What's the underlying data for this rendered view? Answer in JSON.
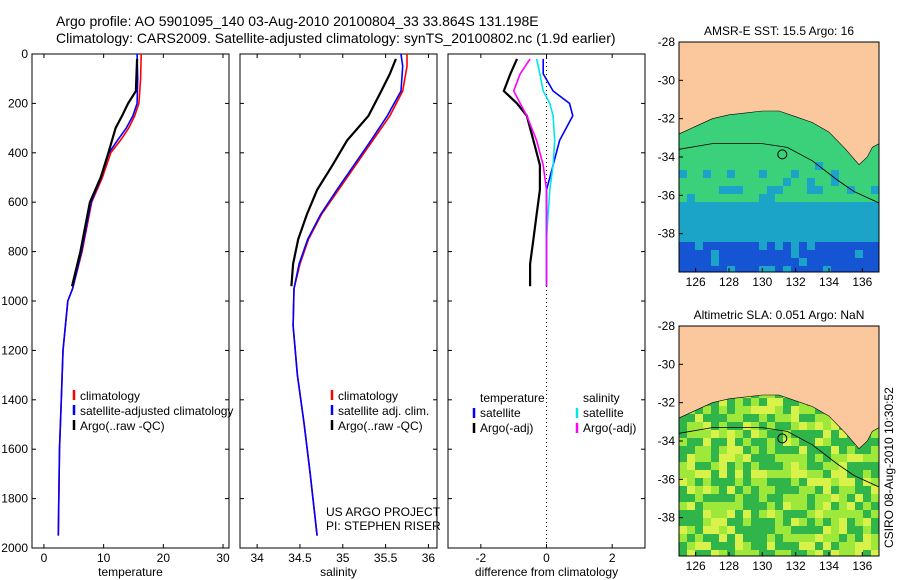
{
  "header": {
    "line1": "Argo profile: AO 5901095_140 03-Aug-2010 20100804_33 33.864S 131.198E",
    "line2": "Climatology: CARS2009. Satellite-adjusted climatology: synTS_20100802.nc (1.9d earlier)"
  },
  "footer": {
    "credit": "CSIRO 08-Aug-2010 10:30:52"
  },
  "chart_data": [
    {
      "type": "line",
      "xlabel": "temperature",
      "ylabel": "",
      "xlim": [
        -2,
        31
      ],
      "ylim": [
        2000,
        0
      ],
      "xticks": [
        0,
        10,
        20,
        30
      ],
      "yticks": [
        0,
        200,
        400,
        600,
        800,
        1000,
        1200,
        1400,
        1600,
        1800,
        2000
      ],
      "legend": [
        "climatology",
        "satellite-adjusted climatology",
        "Argo(..raw -QC)"
      ],
      "series": [
        {
          "name": "climatology",
          "color": "#ff0000",
          "x": [
            16.3,
            16.2,
            15.9,
            15.2,
            14.2,
            12.8,
            11.2,
            9.8,
            8.0,
            6.4,
            4.8,
            4.0,
            3.2,
            2.9,
            2.6,
            2.4
          ],
          "y": [
            0,
            100,
            200,
            250,
            300,
            350,
            400,
            500,
            600,
            800,
            950,
            1000,
            1200,
            1400,
            1600,
            1950
          ]
        },
        {
          "name": "satellite-adjusted climatology",
          "color": "#0000ff",
          "x": [
            15.6,
            15.7,
            15.6,
            14.9,
            13.8,
            12.3,
            10.9,
            9.6,
            7.9,
            6.3,
            4.8,
            4.0,
            3.2,
            2.9,
            2.6,
            2.4
          ],
          "y": [
            0,
            100,
            200,
            250,
            300,
            350,
            400,
            500,
            600,
            800,
            950,
            1000,
            1200,
            1400,
            1600,
            1950
          ]
        },
        {
          "name": "Argo(..raw -QC)",
          "color": "#000000",
          "x": [
            15.6,
            15.5,
            15.4,
            14.1,
            13.1,
            12.0,
            10.8,
            9.5,
            7.7,
            6.1,
            4.7
          ],
          "y": [
            20,
            80,
            150,
            200,
            250,
            300,
            400,
            500,
            600,
            800,
            940
          ]
        }
      ]
    },
    {
      "type": "line",
      "xlabel": "salinity",
      "ylabel": "",
      "xlim": [
        33.8,
        36.1
      ],
      "ylim": [
        2000,
        0
      ],
      "xticks": [
        34,
        34.5,
        35,
        35.5,
        36
      ],
      "legend": [
        "climatology",
        "satellite adj. clim.",
        "Argo(..raw -QC)"
      ],
      "series": [
        {
          "name": "climatology",
          "color": "#ff0000",
          "x": [
            35.75,
            35.75,
            35.7,
            35.55,
            35.35,
            35.15,
            34.95,
            34.75,
            34.6,
            34.5,
            34.43,
            34.42,
            34.47,
            34.55,
            34.62,
            34.7
          ],
          "y": [
            0,
            50,
            150,
            250,
            350,
            450,
            550,
            650,
            750,
            850,
            950,
            1100,
            1300,
            1500,
            1700,
            1950
          ]
        },
        {
          "name": "satellite adj. clim.",
          "color": "#0000ff",
          "x": [
            35.68,
            35.7,
            35.68,
            35.52,
            35.33,
            35.13,
            34.93,
            34.74,
            34.59,
            34.49,
            34.43,
            34.42,
            34.47,
            34.55,
            34.62,
            34.7
          ],
          "y": [
            0,
            50,
            150,
            250,
            350,
            450,
            550,
            650,
            750,
            850,
            950,
            1100,
            1300,
            1500,
            1700,
            1950
          ]
        },
        {
          "name": "Argo(..raw -QC)",
          "color": "#000000",
          "x": [
            35.62,
            35.55,
            35.45,
            35.3,
            35.05,
            34.88,
            34.7,
            34.58,
            34.48,
            34.42,
            34.4
          ],
          "y": [
            20,
            80,
            150,
            250,
            350,
            450,
            550,
            650,
            750,
            850,
            940
          ]
        }
      ],
      "annotations": [
        "US ARGO PROJECT",
        "PI: STEPHEN RISER"
      ]
    },
    {
      "type": "line",
      "xlabel": "difference from climatology",
      "ylabel": "",
      "xlim": [
        -3,
        3
      ],
      "ylim": [
        2000,
        0
      ],
      "xticks": [
        -2,
        0,
        2
      ],
      "legend": {
        "groups": [
          {
            "title": "temperature",
            "entries": [
              "satellite",
              "Argo(-adj)"
            ]
          },
          {
            "title": "salinity",
            "entries": [
              "satellite",
              "Argo(-adj)"
            ]
          }
        ]
      },
      "series": [
        {
          "name": "satellite",
          "group": "temperature",
          "color": "#0000ff",
          "x": [
            -0.1,
            -0.1,
            0.2,
            0.7,
            0.8,
            0.4,
            0.2,
            0.0,
            0.0,
            0.0,
            0.0,
            0.0
          ],
          "y": [
            20,
            80,
            150,
            200,
            250,
            350,
            450,
            550,
            650,
            750,
            850,
            940
          ]
        },
        {
          "name": "Argo(-adj)",
          "group": "temperature",
          "color": "#000000",
          "x": [
            -0.9,
            -1.1,
            -1.3,
            -0.9,
            -0.6,
            -0.4,
            -0.2,
            -0.2,
            -0.3,
            -0.4,
            -0.5,
            -0.5
          ],
          "y": [
            20,
            80,
            150,
            200,
            250,
            350,
            450,
            550,
            650,
            750,
            850,
            940
          ]
        },
        {
          "name": "satellite",
          "group": "salinity",
          "color": "#00e5ee",
          "x": [
            -0.3,
            -0.2,
            -0.1,
            0.1,
            0.2,
            0.25,
            0.2,
            0.1,
            0.05,
            0.0,
            0.0,
            0.0
          ],
          "y": [
            20,
            80,
            150,
            200,
            250,
            350,
            450,
            550,
            650,
            750,
            850,
            940
          ]
        },
        {
          "name": "Argo(-adj)",
          "group": "salinity",
          "color": "#ff00ff",
          "x": [
            -0.5,
            -0.8,
            -1.0,
            -0.8,
            -0.6,
            -0.3,
            -0.1,
            0.0,
            0.0,
            0.0,
            0.0,
            0.0
          ],
          "y": [
            20,
            80,
            150,
            200,
            250,
            350,
            450,
            550,
            650,
            750,
            850,
            940
          ]
        }
      ]
    },
    {
      "type": "heatmap",
      "title": "AMSR-E SST: 15.5 Argo: 16",
      "xlim": [
        125,
        137
      ],
      "ylim": [
        -40,
        -28
      ],
      "xticks": [
        126,
        128,
        130,
        132,
        134,
        136
      ],
      "yticks": [
        -28,
        -30,
        -32,
        -34,
        -36,
        -38
      ],
      "marker": {
        "lon": 131.198,
        "lat": -33.864
      }
    },
    {
      "type": "heatmap",
      "title": "Altimetric SLA: 0.051 Argo: NaN",
      "xlim": [
        125,
        137
      ],
      "ylim": [
        -40,
        -28
      ],
      "xticks": [
        126,
        128,
        130,
        132,
        134,
        136
      ],
      "yticks": [
        -28,
        -30,
        -32,
        -34,
        -36,
        -38
      ],
      "marker": {
        "lon": 131.198,
        "lat": -33.864
      }
    }
  ],
  "colors": {
    "land": "#fbc89e",
    "sst_ocean": [
      "#3bd07a",
      "#1ca3c8",
      "#1555d4"
    ],
    "sla_ocean": [
      "#2fb54a",
      "#9ee83c",
      "#d8f24a"
    ]
  }
}
